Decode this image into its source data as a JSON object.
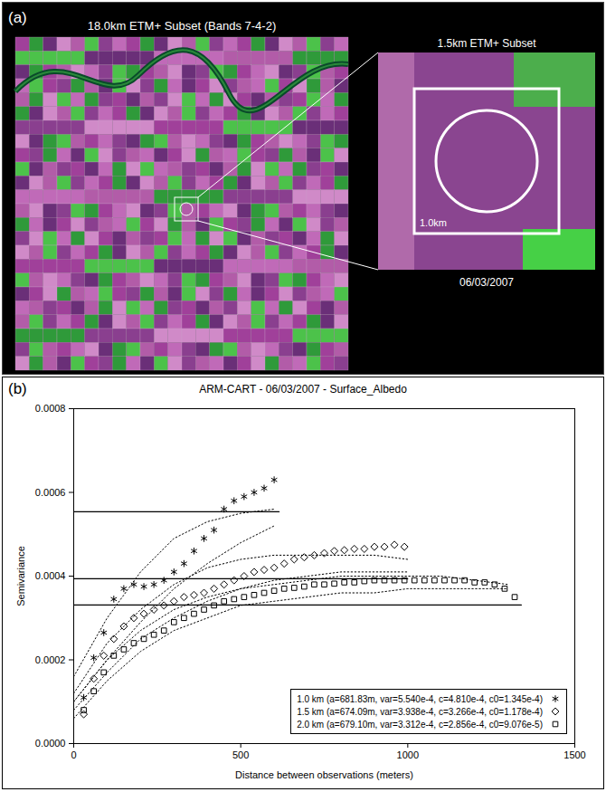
{
  "panel_a": {
    "label": "(a)",
    "title": "18.0km ETM+ Subset (Bands 7-4-2)",
    "inset_title": "1.5km ETM+ Subset",
    "scale_label": "1.0km",
    "date": "06/03/2007"
  },
  "chart_data": {
    "type": "scatter",
    "panel_label": "(b)",
    "title": "ARM-CART - 06/03/2007 - Surface_Albedo",
    "x_label": "Distance between observations (meters)",
    "y_label": "Semivariance",
    "xlim": [
      0,
      1500
    ],
    "xticks": [
      0,
      500,
      1000,
      1500
    ],
    "ylim": [
      0,
      0.0008
    ],
    "yticks": [
      {
        "value": 0,
        "label": "0.0000"
      },
      {
        "value": 0.0002,
        "label": "0.0002"
      },
      {
        "value": 0.0004,
        "label": "0.0004"
      },
      {
        "value": 0.0006,
        "label": "0.0006"
      },
      {
        "value": 0.0008,
        "label": "0.0008"
      }
    ],
    "legend": "lower right",
    "series": [
      {
        "name": "1.0 km (a=681.83m, var=5.540e-4, c=4.810e-4, c0=1.345e-4)",
        "type": "scatter",
        "marker": "asterisk",
        "color": "#000000",
        "x": [
          30,
          60,
          90,
          120,
          150,
          180,
          210,
          240,
          270,
          300,
          330,
          360,
          390,
          420,
          450,
          480,
          510,
          540,
          570,
          600
        ],
        "values": [
          0.00011,
          0.000205,
          0.000265,
          0.000345,
          0.00037,
          0.00038,
          0.000375,
          0.00038,
          0.00039,
          0.00041,
          0.00043,
          0.00046,
          0.00049,
          0.00051,
          0.00056,
          0.00058,
          0.00059,
          0.0006,
          0.00061,
          0.00063
        ]
      },
      {
        "name": "1.5 km (a=674.09m, var=3.938e-4, c=3.266e-4, c0=1.178e-4)",
        "type": "scatter",
        "marker": "diamond",
        "color": "#000000",
        "x": [
          30,
          60,
          90,
          120,
          150,
          180,
          210,
          240,
          270,
          300,
          330,
          360,
          390,
          420,
          450,
          480,
          510,
          540,
          570,
          600,
          630,
          660,
          690,
          720,
          750,
          780,
          810,
          840,
          870,
          900,
          930,
          960,
          990
        ],
        "values": [
          7e-05,
          0.000155,
          0.00021,
          0.00025,
          0.00028,
          0.0003,
          0.00031,
          0.00032,
          0.00033,
          0.00034,
          0.00035,
          0.000355,
          0.00036,
          0.00037,
          0.00038,
          0.00039,
          0.0004,
          0.00041,
          0.000415,
          0.00042,
          0.00043,
          0.00044,
          0.000445,
          0.00045,
          0.000455,
          0.00046,
          0.000462,
          0.000465,
          0.000465,
          0.00047,
          0.00047,
          0.000475,
          0.00047
        ]
      },
      {
        "name": "2.0 km (a=679.10m, var=3.312e-4, c=2.856e-4, c0=9.076e-5)",
        "type": "scatter",
        "marker": "square",
        "color": "#000000",
        "x": [
          30,
          60,
          90,
          120,
          150,
          180,
          210,
          240,
          270,
          300,
          330,
          360,
          390,
          420,
          450,
          480,
          510,
          540,
          570,
          600,
          630,
          660,
          690,
          720,
          750,
          780,
          810,
          840,
          870,
          900,
          930,
          960,
          990,
          1020,
          1050,
          1080,
          1110,
          1140,
          1170,
          1200,
          1230,
          1260,
          1290,
          1320
        ],
        "values": [
          8e-05,
          0.000125,
          0.00017,
          0.00021,
          0.000225,
          0.00024,
          0.00025,
          0.00026,
          0.00027,
          0.00029,
          0.0003,
          0.00031,
          0.00032,
          0.00033,
          0.00034,
          0.000345,
          0.00035,
          0.000355,
          0.00036,
          0.000365,
          0.00037,
          0.000372,
          0.000375,
          0.00038,
          0.00038,
          0.000382,
          0.000385,
          0.000385,
          0.000388,
          0.00039,
          0.00039,
          0.00039,
          0.00039,
          0.00039,
          0.00039,
          0.00039,
          0.00039,
          0.00039,
          0.00039,
          0.000385,
          0.000385,
          0.00038,
          0.00037,
          0.00035
        ]
      },
      {
        "type": "line",
        "line_style": "solid",
        "color": "#000000",
        "x": [
          0,
          615
        ],
        "values": [
          0.000554,
          0.000554
        ]
      },
      {
        "type": "line",
        "line_style": "solid",
        "color": "#000000",
        "x": [
          0,
          1000
        ],
        "values": [
          0.0003938,
          0.0003938
        ]
      },
      {
        "type": "line",
        "line_style": "solid",
        "color": "#000000",
        "x": [
          0,
          1340
        ],
        "values": [
          0.0003312,
          0.0003312
        ]
      },
      {
        "type": "line",
        "line_style": "dotted",
        "color": "#000000",
        "x": [
          0,
          100,
          200,
          300,
          400,
          500,
          600
        ],
        "values": [
          0.00016,
          0.0003,
          0.00041,
          0.00049,
          0.00053,
          0.00055,
          0.00056
        ]
      },
      {
        "type": "line",
        "line_style": "dotted",
        "color": "#000000",
        "x": [
          0,
          100,
          200,
          300,
          400,
          500,
          600
        ],
        "values": [
          0.0001,
          0.0002,
          0.00029,
          0.00037,
          0.00043,
          0.00048,
          0.00052
        ]
      },
      {
        "type": "line",
        "line_style": "dotted",
        "color": "#000000",
        "x": [
          0,
          100,
          200,
          300,
          400,
          500,
          600,
          700,
          800,
          900,
          1000
        ],
        "values": [
          0.00012,
          0.00024,
          0.00032,
          0.00038,
          0.00042,
          0.00044,
          0.00045,
          0.00045,
          0.00045,
          0.00045,
          0.00044
        ]
      },
      {
        "type": "line",
        "line_style": "dotted",
        "color": "#000000",
        "x": [
          0,
          100,
          200,
          300,
          400,
          500,
          600,
          700,
          800,
          900,
          1000
        ],
        "values": [
          8e-05,
          0.00017,
          0.00025,
          0.0003,
          0.00034,
          0.00037,
          0.00039,
          0.0004,
          0.00041,
          0.00041,
          0.00041
        ]
      },
      {
        "type": "line",
        "line_style": "dotted",
        "color": "#000000",
        "x": [
          0,
          100,
          200,
          300,
          400,
          500,
          600,
          700,
          800,
          900,
          1000,
          1100,
          1200,
          1300
        ],
        "values": [
          0.0001,
          0.0002,
          0.00027,
          0.00032,
          0.00035,
          0.00037,
          0.00038,
          0.00039,
          0.0004,
          0.0004,
          0.0004,
          0.0004,
          0.00039,
          0.00038
        ]
      },
      {
        "type": "line",
        "line_style": "dotted",
        "color": "#000000",
        "x": [
          0,
          100,
          200,
          300,
          400,
          500,
          600,
          700,
          800,
          900,
          1000,
          1100,
          1200,
          1300
        ],
        "values": [
          6e-05,
          0.00015,
          0.00022,
          0.00027,
          0.0003,
          0.00033,
          0.00034,
          0.00035,
          0.00036,
          0.00036,
          0.00037,
          0.00037,
          0.00037,
          0.00037
        ]
      }
    ]
  }
}
